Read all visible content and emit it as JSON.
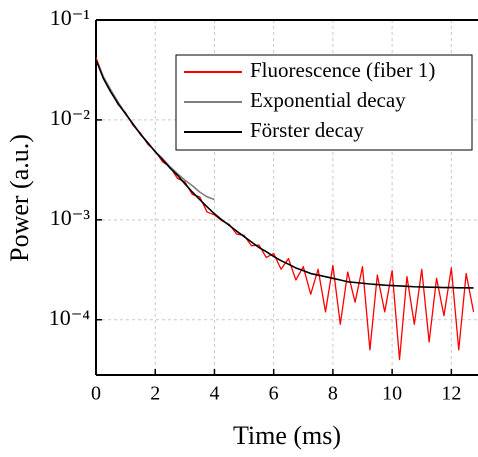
{
  "chart_data": {
    "type": "line",
    "xlabel": "Time (ms)",
    "ylabel": "Power (a.u.)",
    "x": [
      0,
      0.25,
      0.5,
      0.75,
      1,
      1.25,
      1.5,
      1.75,
      2,
      2.25,
      2.5,
      2.75,
      3,
      3.25,
      3.5,
      3.75,
      4,
      4.25,
      4.5,
      4.75,
      5,
      5.25,
      5.5,
      5.75,
      6,
      6.25,
      6.5,
      6.75,
      7,
      7.25,
      7.5,
      7.75,
      8,
      8.25,
      8.5,
      8.75,
      9,
      9.25,
      9.5,
      9.75,
      10,
      10.25,
      10.5,
      10.75,
      11,
      11.25,
      11.5,
      11.75,
      12,
      12.25,
      12.5,
      12.75
    ],
    "series": [
      {
        "name": "Fluorescence (fiber 1)",
        "color": "#ff0000",
        "values": [
          0.042,
          0.027,
          0.0195,
          0.0142,
          0.0118,
          0.0088,
          0.0074,
          0.0057,
          0.0049,
          0.0038,
          0.0034,
          0.0026,
          0.0024,
          0.0018,
          0.0017,
          0.0012,
          0.00112,
          0.00098,
          0.0009,
          0.00072,
          0.0007,
          0.00055,
          0.00056,
          0.00042,
          0.00046,
          0.00032,
          0.00041,
          0.00025,
          0.00034,
          0.00018,
          0.00032,
          0.00012,
          0.00035,
          9e-05,
          0.0003,
          0.00015,
          0.00034,
          5e-05,
          0.00028,
          0.00012,
          0.00031,
          4e-05,
          0.00027,
          9e-05,
          0.00032,
          6e-05,
          0.00026,
          0.00011,
          0.00033,
          5e-05,
          0.00029,
          0.00012
        ]
      },
      {
        "name": "Exponential decay",
        "color": "#808080",
        "values": [
          0.04,
          0.027,
          0.02,
          0.015,
          0.0115,
          0.0091,
          0.0072,
          0.0059,
          0.0048,
          0.0041,
          0.0034,
          0.0029,
          0.0025,
          0.0022,
          0.0019,
          0.0017,
          0.0016,
          null,
          null,
          null,
          null,
          null,
          null,
          null,
          null,
          null,
          null,
          null,
          null,
          null,
          null,
          null,
          null,
          null,
          null,
          null,
          null,
          null,
          null,
          null,
          null,
          null,
          null,
          null,
          null,
          null,
          null,
          null,
          null,
          null,
          null,
          null
        ]
      },
      {
        "name": "Förster decay",
        "color": "#000000",
        "values": [
          0.04,
          0.026,
          0.019,
          0.0145,
          0.0115,
          0.0091,
          0.0072,
          0.0059,
          0.0048,
          0.004,
          0.0033,
          0.0028,
          0.0023,
          0.0019,
          0.0016,
          0.00135,
          0.00115,
          0.001,
          0.00088,
          0.00077,
          0.00068,
          0.0006,
          0.00053,
          0.00048,
          0.00043,
          0.00039,
          0.00036,
          0.00033,
          0.00031,
          0.00029,
          0.00028,
          0.00027,
          0.00026,
          0.00025,
          0.00024,
          0.000236,
          0.000232,
          0.000228,
          0.000225,
          0.000222,
          0.00022,
          0.000218,
          0.000216,
          0.000214,
          0.000213,
          0.000212,
          0.000211,
          0.00021,
          0.00021,
          0.000209,
          0.000209,
          0.000208
        ]
      }
    ],
    "xlim": [
      0,
      12.9
    ],
    "xticks": [
      0,
      2,
      4,
      6,
      8,
      10,
      12
    ],
    "ylim": [
      2.8e-05,
      0.1
    ],
    "ylog": true,
    "yticks": [
      {
        "value": 0.1,
        "label": "10⁻¹"
      },
      {
        "value": 0.01,
        "label": "10⁻²"
      },
      {
        "value": 0.001,
        "label": "10⁻³"
      },
      {
        "value": 0.0001,
        "label": "10⁻⁴"
      }
    ],
    "grid": true,
    "legend": "upper right"
  }
}
